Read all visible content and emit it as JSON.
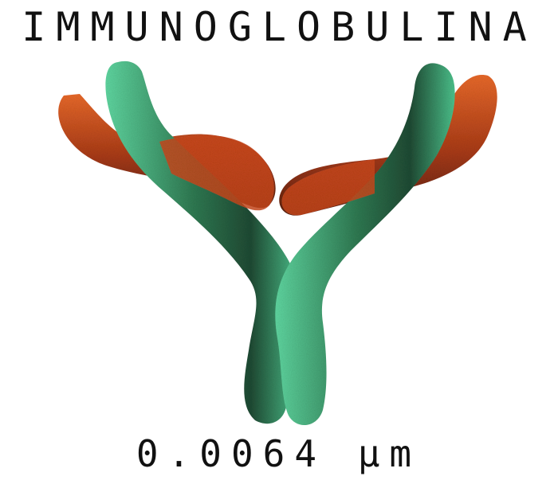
{
  "title": "IMMUNOGLOBULINA",
  "scale_label": "0.0064 µm",
  "colors": {
    "heavy_chain": "#3fae7c",
    "heavy_chain_dark": "#1f4a33",
    "light_chain": "#d4541e",
    "light_chain_dark": "#5a2110",
    "text": "#111111",
    "background": "#ffffff"
  }
}
